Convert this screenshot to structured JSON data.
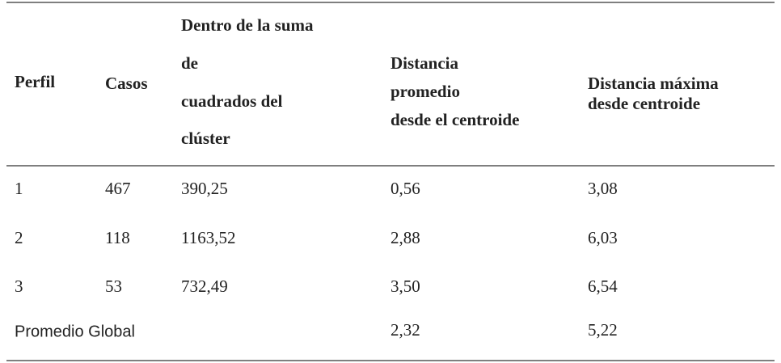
{
  "table": {
    "header": [
      [
        "Perfil"
      ],
      [
        "Casos"
      ],
      [
        "Dentro de la suma",
        "de",
        "cuadrados del",
        "clúster"
      ],
      [
        "Distancia",
        "promedio",
        "desde el centroide"
      ],
      [
        "Distancia máxima",
        "desde centroide"
      ]
    ],
    "rows": [
      [
        "1",
        "467",
        "390,25",
        "0,56",
        "3,08"
      ],
      [
        "2",
        "118",
        "1163,52",
        "2,88",
        "6,03"
      ],
      [
        "3",
        "53",
        "732,49",
        "3,50",
        "6,54"
      ]
    ],
    "footer": {
      "label": "Promedio Global",
      "values": [
        "2,32",
        "5,22"
      ]
    }
  }
}
